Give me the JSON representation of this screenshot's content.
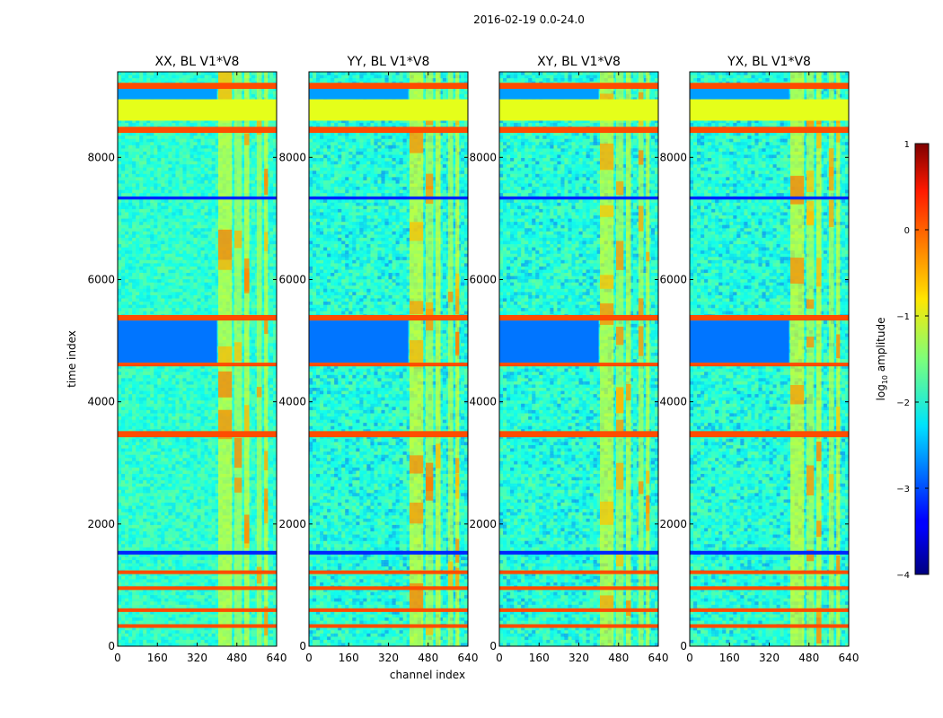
{
  "figure": {
    "suptitle": "2016-02-19 0.0-24.0"
  },
  "chart_data": {
    "type": "heatmap",
    "xlabel": "channel index",
    "ylabel": "time index",
    "xlim": [
      0,
      640
    ],
    "ylim": [
      0,
      9400
    ],
    "x_ticks": [
      "0",
      "160",
      "320",
      "480",
      "640"
    ],
    "y_ticks": [
      "0",
      "2000",
      "4000",
      "6000",
      "8000"
    ],
    "panels": [
      {
        "title": "XX, BL V1*V8",
        "pol": "XX"
      },
      {
        "title": "YY, BL V1*V8",
        "pol": "YY"
      },
      {
        "title": "XY, BL V1*V8",
        "pol": "XY"
      },
      {
        "title": "YX, BL V1*V8",
        "pol": "YX"
      }
    ],
    "colorbar": {
      "label": "log10 amplitude",
      "min": -4,
      "max": 1,
      "ticks": [
        "1",
        "0",
        "−1",
        "−2",
        "−3",
        "−4"
      ],
      "colormap": "jet"
    },
    "flagged_time_bands": [
      {
        "t0": 9120,
        "t1": 9220,
        "log_amp": 0.0
      },
      {
        "t0": 8400,
        "t1": 8500,
        "log_amp": 0.0
      },
      {
        "t0": 7310,
        "t1": 7360,
        "log_amp": -3.2
      },
      {
        "t0": 5330,
        "t1": 5420,
        "log_amp": 0.0
      },
      {
        "t0": 4580,
        "t1": 4640,
        "log_amp": 0.0
      },
      {
        "t0": 3420,
        "t1": 3520,
        "log_amp": 0.0
      },
      {
        "t0": 1500,
        "t1": 1560,
        "log_amp": -3.2
      },
      {
        "t0": 1180,
        "t1": 1240,
        "log_amp": 0.0
      },
      {
        "t0": 920,
        "t1": 980,
        "log_amp": 0.0
      },
      {
        "t0": 560,
        "t1": 620,
        "log_amp": 0.0
      },
      {
        "t0": 300,
        "t1": 360,
        "log_amp": 0.0
      }
    ],
    "constant_band": {
      "t0": 8600,
      "t1": 8950,
      "log_amp": -1.0
    },
    "background_log_amp": -1.9,
    "rfi_channel_ranges": [
      [
        405,
        460
      ],
      [
        470,
        500
      ],
      [
        510,
        530
      ],
      [
        560,
        580
      ],
      [
        590,
        605
      ]
    ]
  }
}
